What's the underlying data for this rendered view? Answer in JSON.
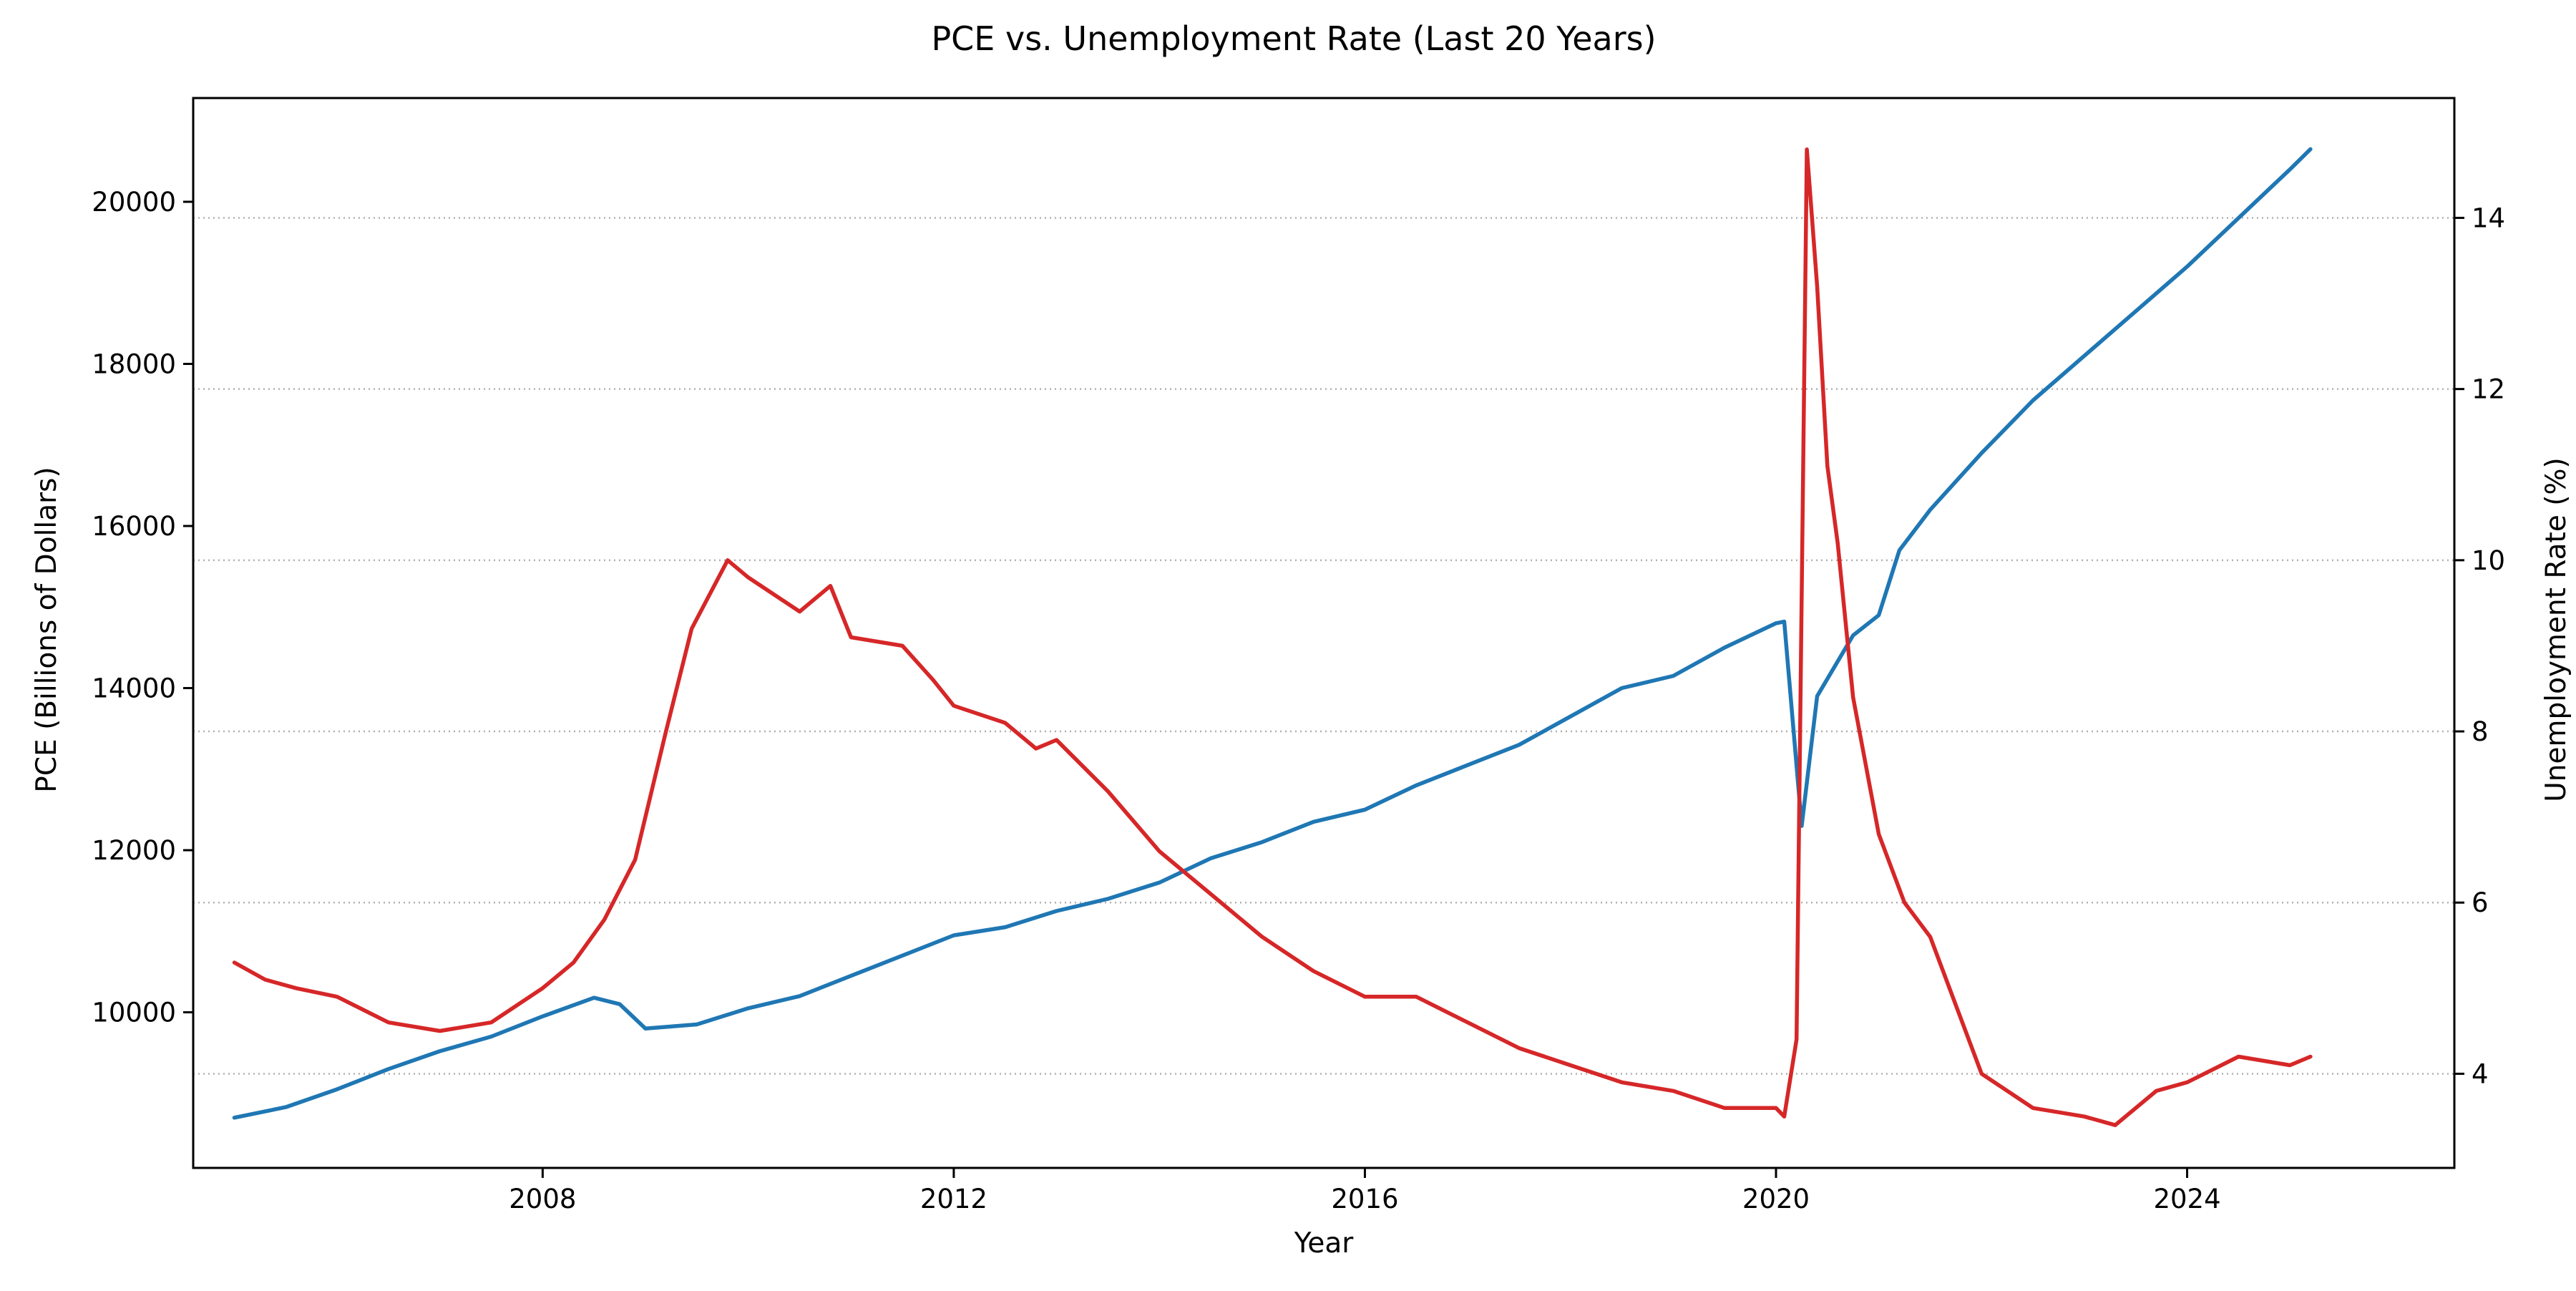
{
  "chart_data": {
    "type": "line",
    "title": "PCE vs. Unemployment Rate (Last 20 Years)",
    "xlabel": "Year",
    "ylabel": "PCE (Billions of Dollars)",
    "ylabel_right": "Unemployment Rate (%)",
    "x_ticks": [
      2008,
      2012,
      2016,
      2020,
      2024
    ],
    "y_ticks": [
      10000,
      12000,
      14000,
      16000,
      18000,
      20000
    ],
    "y_ticks_right": [
      4,
      6,
      8,
      10,
      12,
      14
    ],
    "xlim": [
      2004.6,
      2026.6
    ],
    "ylim": [
      8080,
      21280
    ],
    "ylim_right": [
      2.9,
      15.4
    ],
    "grid": "right-axis horizontal dotted",
    "legend": "none",
    "series": [
      {
        "axis": "left",
        "color": "#1f77b4",
        "points": [
          [
            2005.0,
            8700
          ],
          [
            2005.5,
            8830
          ],
          [
            2006.0,
            9050
          ],
          [
            2006.5,
            9300
          ],
          [
            2007.0,
            9520
          ],
          [
            2007.5,
            9700
          ],
          [
            2008.0,
            9950
          ],
          [
            2008.5,
            10180
          ],
          [
            2008.75,
            10100
          ],
          [
            2009.0,
            9800
          ],
          [
            2009.5,
            9850
          ],
          [
            2010.0,
            10050
          ],
          [
            2010.5,
            10200
          ],
          [
            2011.0,
            10450
          ],
          [
            2011.5,
            10700
          ],
          [
            2012.0,
            10950
          ],
          [
            2012.5,
            11050
          ],
          [
            2013.0,
            11250
          ],
          [
            2013.5,
            11400
          ],
          [
            2014.0,
            11600
          ],
          [
            2014.5,
            11900
          ],
          [
            2015.0,
            12100
          ],
          [
            2015.5,
            12350
          ],
          [
            2016.0,
            12500
          ],
          [
            2016.5,
            12800
          ],
          [
            2017.0,
            13050
          ],
          [
            2017.5,
            13300
          ],
          [
            2018.0,
            13650
          ],
          [
            2018.5,
            14000
          ],
          [
            2019.0,
            14150
          ],
          [
            2019.5,
            14500
          ],
          [
            2020.0,
            14800
          ],
          [
            2020.08,
            14820
          ],
          [
            2020.25,
            12300
          ],
          [
            2020.4,
            13900
          ],
          [
            2020.75,
            14650
          ],
          [
            2021.0,
            14900
          ],
          [
            2021.2,
            15700
          ],
          [
            2021.5,
            16200
          ],
          [
            2022.0,
            16900
          ],
          [
            2022.5,
            17550
          ],
          [
            2023.0,
            18100
          ],
          [
            2023.5,
            18650
          ],
          [
            2024.0,
            19200
          ],
          [
            2024.5,
            19800
          ],
          [
            2025.0,
            20400
          ],
          [
            2025.2,
            20650
          ]
        ]
      },
      {
        "axis": "right",
        "color": "#d62728",
        "points": [
          [
            2005.0,
            5.3
          ],
          [
            2005.3,
            5.1
          ],
          [
            2005.6,
            5.0
          ],
          [
            2006.0,
            4.9
          ],
          [
            2006.5,
            4.6
          ],
          [
            2007.0,
            4.5
          ],
          [
            2007.5,
            4.6
          ],
          [
            2008.0,
            5.0
          ],
          [
            2008.3,
            5.3
          ],
          [
            2008.6,
            5.8
          ],
          [
            2008.9,
            6.5
          ],
          [
            2009.2,
            8.0
          ],
          [
            2009.45,
            9.2
          ],
          [
            2009.8,
            10.0
          ],
          [
            2010.0,
            9.8
          ],
          [
            2010.5,
            9.4
          ],
          [
            2010.8,
            9.7
          ],
          [
            2011.0,
            9.1
          ],
          [
            2011.5,
            9.0
          ],
          [
            2011.8,
            8.6
          ],
          [
            2012.0,
            8.3
          ],
          [
            2012.5,
            8.1
          ],
          [
            2012.8,
            7.8
          ],
          [
            2013.0,
            7.9
          ],
          [
            2013.5,
            7.3
          ],
          [
            2014.0,
            6.6
          ],
          [
            2014.5,
            6.1
          ],
          [
            2015.0,
            5.6
          ],
          [
            2015.5,
            5.2
          ],
          [
            2016.0,
            4.9
          ],
          [
            2016.5,
            4.9
          ],
          [
            2017.0,
            4.6
          ],
          [
            2017.5,
            4.3
          ],
          [
            2018.0,
            4.1
          ],
          [
            2018.5,
            3.9
          ],
          [
            2019.0,
            3.8
          ],
          [
            2019.5,
            3.6
          ],
          [
            2020.0,
            3.6
          ],
          [
            2020.08,
            3.5
          ],
          [
            2020.2,
            4.4
          ],
          [
            2020.3,
            14.8
          ],
          [
            2020.4,
            13.2
          ],
          [
            2020.5,
            11.1
          ],
          [
            2020.6,
            10.2
          ],
          [
            2020.75,
            8.4
          ],
          [
            2021.0,
            6.8
          ],
          [
            2021.25,
            6.0
          ],
          [
            2021.5,
            5.6
          ],
          [
            2021.75,
            4.8
          ],
          [
            2022.0,
            4.0
          ],
          [
            2022.5,
            3.6
          ],
          [
            2023.0,
            3.5
          ],
          [
            2023.3,
            3.4
          ],
          [
            2023.7,
            3.8
          ],
          [
            2024.0,
            3.9
          ],
          [
            2024.5,
            4.2
          ],
          [
            2025.0,
            4.1
          ],
          [
            2025.2,
            4.2
          ]
        ]
      }
    ]
  }
}
